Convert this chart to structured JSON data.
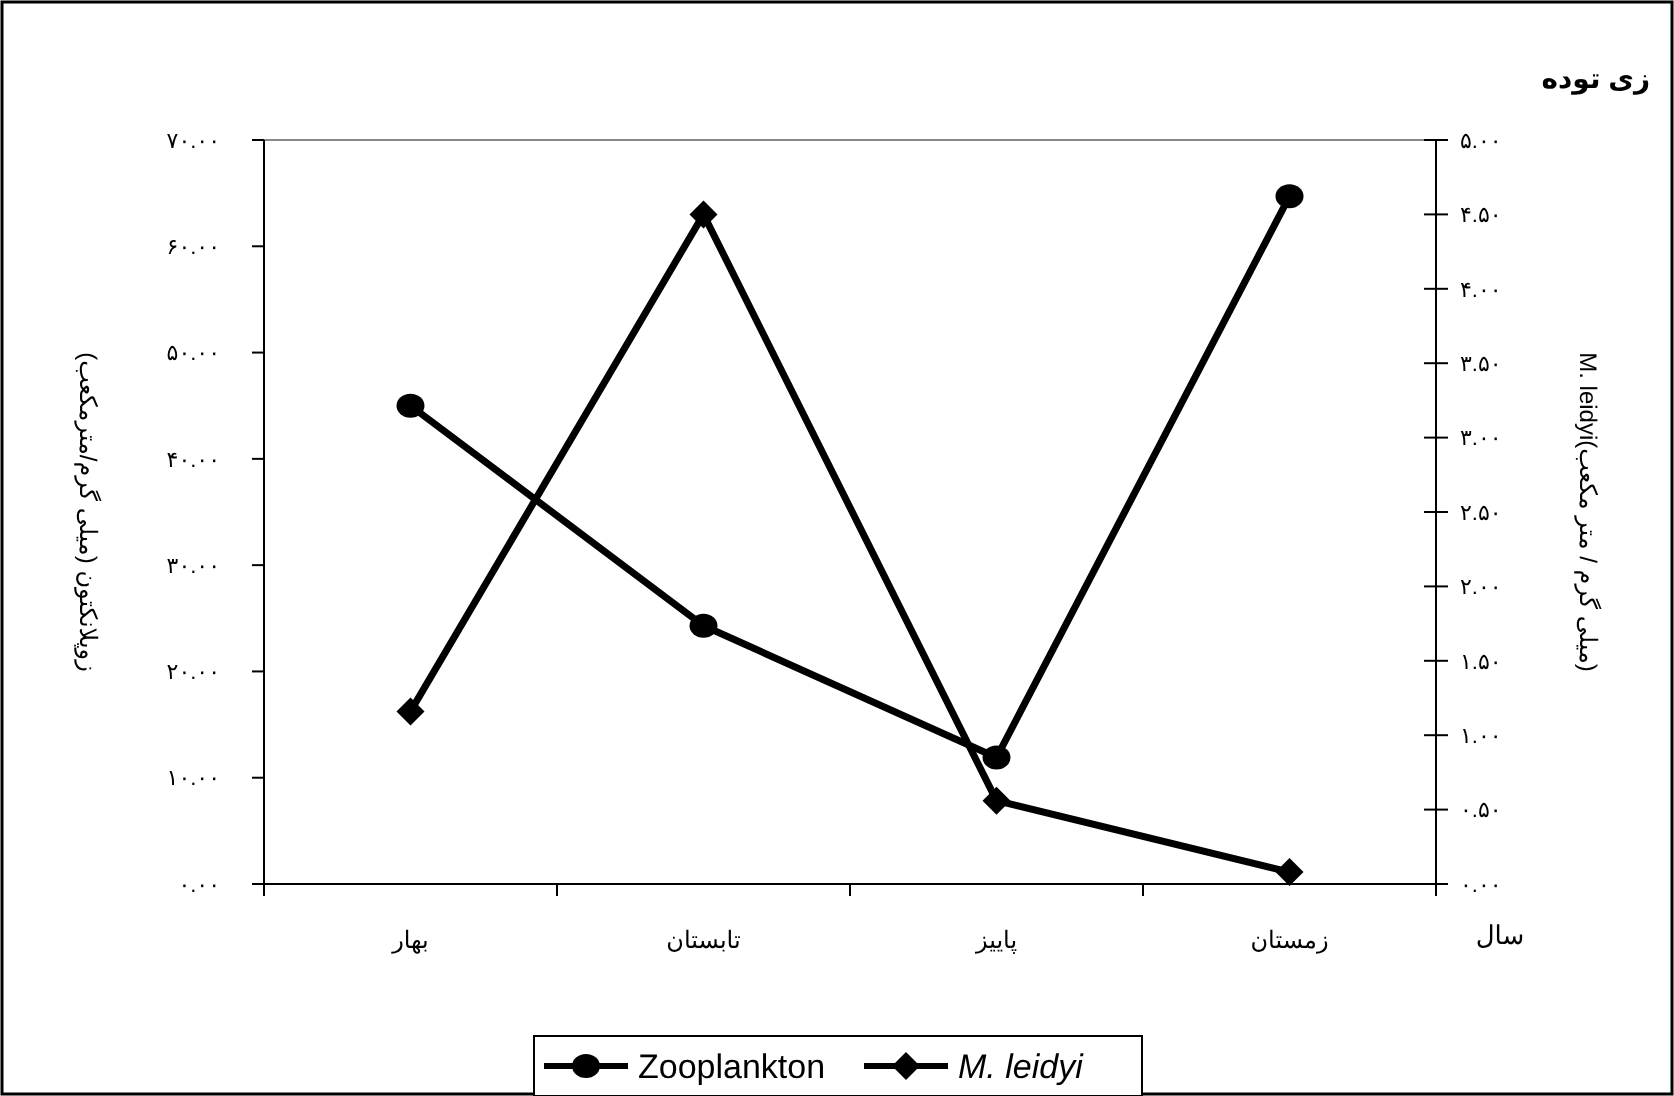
{
  "chart_data": {
    "type": "line",
    "title": "زی توده",
    "xlabel": "سال",
    "ylabel": "زوپلانکتون (میلی گرم/مترمکعب)",
    "y2label": "M. leidyi(میلی گرم / متر مکعب)",
    "categories": [
      "بهار",
      "تابستان",
      "پاییز",
      "زمستان"
    ],
    "series": [
      {
        "name": "Zooplankton",
        "color": "#000000",
        "values": [
          45.0,
          24.3,
          11.9,
          64.7
        ],
        "marker": "circle"
      },
      {
        "name": "M. leidyi",
        "color": "#000000",
        "values": [
          1.16,
          4.5,
          0.56,
          0.08
        ],
        "marker": "diamond",
        "axis": "y2"
      }
    ],
    "ylim": [
      0,
      70
    ],
    "yticks": [
      {
        "value": 0,
        "label": "۰.۰۰"
      },
      {
        "value": 10,
        "label": "۱۰.۰۰"
      },
      {
        "value": 20,
        "label": "۲۰.۰۰"
      },
      {
        "value": 30,
        "label": "۳۰.۰۰"
      },
      {
        "value": 40,
        "label": "۴۰.۰۰"
      },
      {
        "value": 50,
        "label": "۵۰.۰۰"
      },
      {
        "value": 60,
        "label": "۶۰.۰۰"
      },
      {
        "value": 70,
        "label": "۷۰.۰۰"
      }
    ],
    "y2lim": [
      0,
      5
    ],
    "y2ticks": [
      {
        "value": 0,
        "label": "۰.۰۰"
      },
      {
        "value": 0.5,
        "label": "۰.۵۰"
      },
      {
        "value": 1,
        "label": "۱.۰۰"
      },
      {
        "value": 1.5,
        "label": "۱.۵۰"
      },
      {
        "value": 2,
        "label": "۲.۰۰"
      },
      {
        "value": 2.5,
        "label": "۲.۵۰"
      },
      {
        "value": 3,
        "label": "۳.۰۰"
      },
      {
        "value": 3.5,
        "label": "۳.۵۰"
      },
      {
        "value": 4,
        "label": "۴.۰۰"
      },
      {
        "value": 4.5,
        "label": "۴.۵۰"
      },
      {
        "value": 5,
        "label": "۵.۰۰"
      }
    ],
    "legend": "bottom",
    "grid": false,
    "line_style": "solid"
  }
}
